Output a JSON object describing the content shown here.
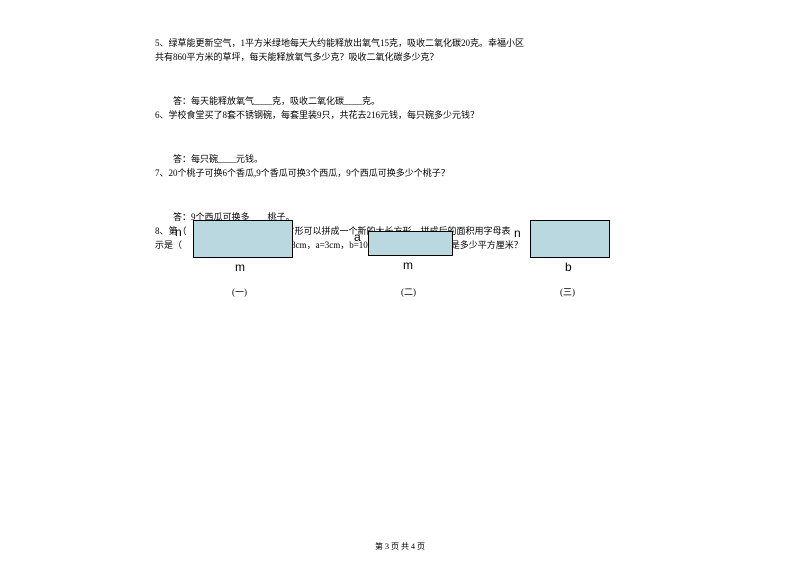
{
  "q5": {
    "line1": "5、绿草能更新空气，1平方米绿地每天大约能释放出氧气15克，吸收二氧化碳20克。幸福小区",
    "line2": "共有860平方米的草坪，每天能释放氧气多少克？吸收二氧化碳多少克？",
    "answer": "答：每天能释放氧气____克，吸收二氧化碳____克。"
  },
  "q6": {
    "line1": "6、学校食堂买了8套不锈钢碗，每套里装9只，共花去216元钱，每只碗多少元钱？",
    "answer": "答：每只碗____元钱。"
  },
  "q7": {
    "line1": "7、20个桃子可换6个香瓜,9个香瓜可换3个西瓜，9个西瓜可换多少个桃子？",
    "answer": "答：9个西瓜可换多____桃子。"
  },
  "q8": {
    "line1": "8、第（　　）个和（　　）个长方形可以拼成一个新的大长方形，拼成后的面积用字母表",
    "line2": "示是（　　　）。如果m=15cm，n=8cm，a=3cm，b=10cm，那拼成后的面积是多少平方厘米？"
  },
  "diagram": {
    "n1": "n",
    "m1": "m",
    "a2": "a",
    "m2": "m",
    "n3": "n",
    "b3": "b",
    "cap1": "(一)",
    "cap2": "(二)",
    "cap3": "(三)"
  },
  "footer": "第 3 页 共 4 页"
}
